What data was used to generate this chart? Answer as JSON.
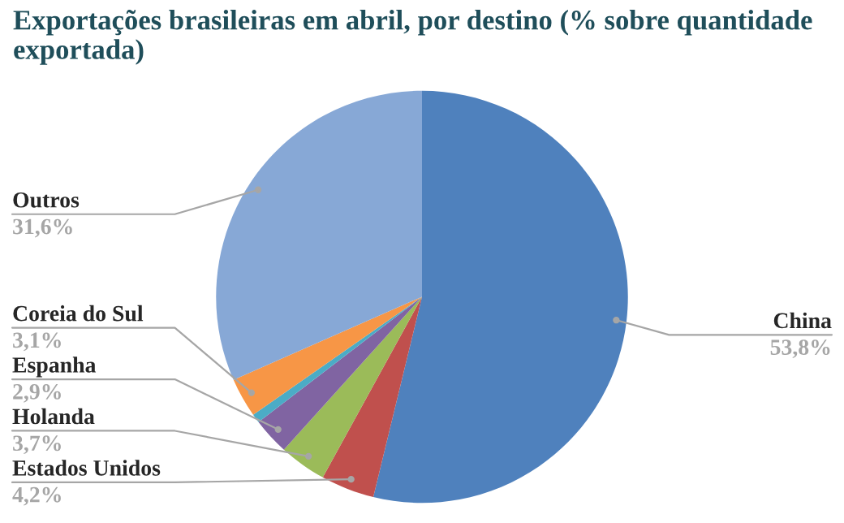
{
  "chart_data": {
    "type": "pie",
    "title": "Exportações brasileiras em abril, por destino (% sobre quantidade exportada)",
    "categories": [
      "China",
      "Estados Unidos",
      "Holanda",
      "Espanha",
      null,
      "Coreia do Sul",
      "Outros"
    ],
    "values": [
      53.8,
      4.2,
      3.7,
      2.9,
      0.7,
      3.1,
      31.6
    ],
    "value_labels": [
      "53,8%",
      "4,2%",
      "3,7%",
      "2,9%",
      null,
      "3,1%",
      "31,6%"
    ],
    "colors": [
      "#4f81bd",
      "#c0504d",
      "#9bbb59",
      "#8064a2",
      "#4bacc6",
      "#f79646",
      "#87a8d6"
    ],
    "legend": false
  }
}
